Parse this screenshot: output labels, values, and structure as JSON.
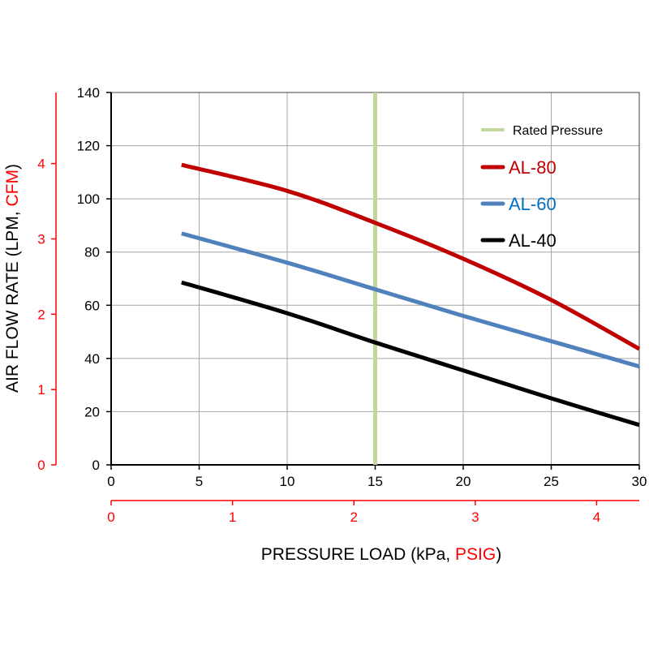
{
  "chart_data": {
    "type": "line",
    "xlabel": {
      "main": "PRESSURE LOAD (kPa, ",
      "secondary": "PSIG",
      "end": ")"
    },
    "ylabel": {
      "main": "AIR FLOW RATE (LPM, ",
      "secondary": "CFM",
      "end": ")"
    },
    "xlim": [
      0,
      30
    ],
    "ylim": [
      0,
      140
    ],
    "x_ticks": [
      0,
      5,
      10,
      15,
      20,
      25,
      30
    ],
    "y_ticks": [
      0,
      20,
      40,
      60,
      80,
      100,
      120,
      140
    ],
    "secondary_x_ticks": [
      0,
      1,
      2,
      3,
      4
    ],
    "secondary_y_ticks": [
      0,
      1,
      2,
      3,
      4
    ],
    "secondary_color": "#ff0000",
    "grid": true,
    "legend_position": "top-right",
    "rated_pressure": {
      "name": "Rated Pressure",
      "x": 15,
      "color": "#c3d69b"
    },
    "series": [
      {
        "name": "AL-80",
        "color": "#c00000",
        "label_color": "#c00000",
        "x": [
          4,
          10,
          15,
          20,
          25,
          30
        ],
        "y": [
          112.8,
          103,
          91,
          77.5,
          62,
          43.6
        ]
      },
      {
        "name": "AL-60",
        "color": "#4f81bd",
        "label_color": "#0070c0",
        "x": [
          4,
          10,
          15,
          20,
          25,
          30
        ],
        "y": [
          87,
          76,
          66,
          56,
          46.5,
          37
        ]
      },
      {
        "name": "AL-40",
        "color": "#000000",
        "label_color": "#000000",
        "x": [
          4,
          10,
          15,
          20,
          25,
          30
        ],
        "y": [
          68.6,
          57,
          46,
          35.5,
          25,
          15
        ]
      }
    ]
  }
}
